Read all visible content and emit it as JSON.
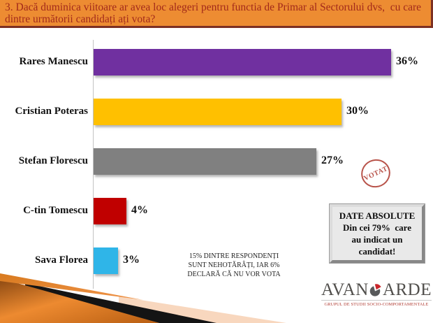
{
  "title": "3. Dacă duminica viitoare ar avea loc alegeri pentru functia de Primar al Sectorului dvs,  cu care\ndintre următorii candidați ați vota?",
  "chart_data": {
    "type": "bar",
    "orientation": "horizontal",
    "categories": [
      "Rares Manescu",
      "Cristian Poteras",
      "Stefan Florescu",
      "C-tin Tomescu",
      "Sava Florea"
    ],
    "values": [
      36,
      30,
      27,
      4,
      3
    ],
    "value_labels": [
      "36%",
      "30%",
      "27%",
      "4%",
      "3%"
    ],
    "bar_colors": [
      "#7030A0",
      "#FFC000",
      "#808080",
      "#C00000",
      "#2FB5E8"
    ],
    "xlim": [
      0,
      38
    ],
    "grid": false,
    "legend": false
  },
  "note": "15% DINTRE RESPONDENȚI\nSUNT NEHOTĂRÂȚI, IAR 6%\nDECLARĂ CĂ NU VOR VOTA",
  "stamp": {
    "label": "VOTAT",
    "color": "#b8534a"
  },
  "info_box": {
    "text": "DATE ABSOLUTE\nDin cei 79%  care\nau indicat un\ncandidat!"
  },
  "logo": {
    "prefix": "AVAN",
    "suffix": "ARDE",
    "subtitle": "GRUPUL DE STUDII SOCIO-COMPORTAMENTALE"
  },
  "colors": {
    "banner_bg": "#ED8C32",
    "banner_text": "#A2291A",
    "banner_border": "#7c3023",
    "footer_orange": "#E87E1F",
    "footer_peach": "#F8D7BE",
    "footer_black": "#141414"
  }
}
